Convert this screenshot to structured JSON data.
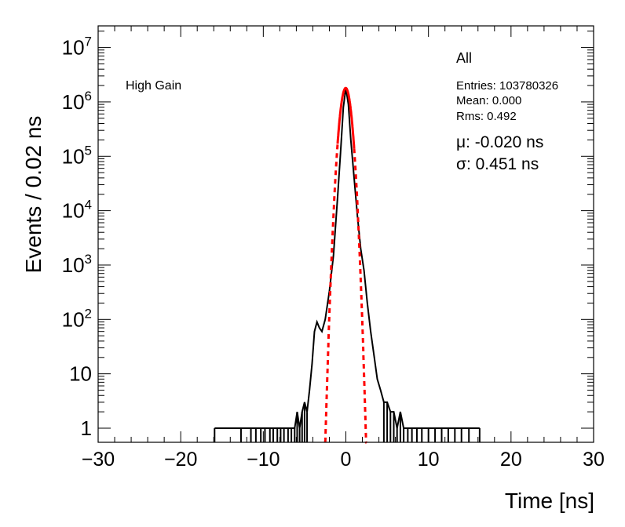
{
  "chart_data": {
    "type": "histogram",
    "title": "",
    "xlabel": "Time [ns]",
    "ylabel": "Events / 0.02 ns",
    "xlim": [
      -30,
      30
    ],
    "ylim": [
      0.55,
      25000000
    ],
    "yscale": "log",
    "bin_width_ns": 0.02,
    "x_ticks": [
      -30,
      -20,
      -10,
      0,
      10,
      20,
      30
    ],
    "x_tick_labels": [
      "−30",
      "−20",
      "−10",
      "0",
      "10",
      "20",
      "30"
    ],
    "y_ticks": [
      1,
      10,
      100,
      1000,
      10000,
      100000,
      1000000,
      10000000
    ],
    "y_tick_labels": [
      {
        "base": "1",
        "exp": ""
      },
      {
        "base": "10",
        "exp": ""
      },
      {
        "base": "10",
        "exp": "2"
      },
      {
        "base": "10",
        "exp": "3"
      },
      {
        "base": "10",
        "exp": "4"
      },
      {
        "base": "10",
        "exp": "5"
      },
      {
        "base": "10",
        "exp": "6"
      },
      {
        "base": "10",
        "exp": "7"
      }
    ],
    "grid": false,
    "annotation_left": "High Gain",
    "stats": {
      "name": "All",
      "entries": "Entries: 103780326",
      "mean": "Mean: 0.000",
      "rms": "Rms: 0.492"
    },
    "fit": {
      "mu_text": "μ: -0.020 ns",
      "sigma_text": "σ: 0.451 ns",
      "mu": -0.02,
      "sigma": 0.451,
      "peak": 1800000
    },
    "series": [
      {
        "style": "histogram",
        "color": "#000000",
        "points": [
          [
            -15.9,
            1
          ],
          [
            -12.7,
            1
          ],
          [
            -11.5,
            1
          ],
          [
            -10.9,
            1
          ],
          [
            -10.3,
            1
          ],
          [
            -9.8,
            1
          ],
          [
            -9.2,
            1
          ],
          [
            -8.8,
            1
          ],
          [
            -8.3,
            1
          ],
          [
            -7.9,
            1
          ],
          [
            -7.5,
            1
          ],
          [
            -7.0,
            1
          ],
          [
            -6.6,
            1
          ],
          [
            -6.2,
            1
          ],
          [
            -5.9,
            2
          ],
          [
            -5.6,
            1
          ],
          [
            -5.3,
            2
          ],
          [
            -5.0,
            3
          ],
          [
            -4.7,
            2
          ],
          [
            -4.4,
            5
          ],
          [
            -4.1,
            15
          ],
          [
            -3.8,
            60
          ],
          [
            -3.5,
            90
          ],
          [
            -3.2,
            70
          ],
          [
            -2.9,
            60
          ],
          [
            -2.5,
            100
          ],
          [
            -2.0,
            330
          ],
          [
            -1.5,
            1500
          ],
          [
            -1.0,
            18000
          ],
          [
            -0.6,
            150000
          ],
          [
            -0.3,
            800000
          ],
          [
            0.0,
            1800000
          ],
          [
            0.3,
            900000
          ],
          [
            0.6,
            200000
          ],
          [
            1.0,
            40000
          ],
          [
            1.4,
            8000
          ],
          [
            1.8,
            2000
          ],
          [
            2.2,
            800
          ],
          [
            2.6,
            200
          ],
          [
            3.0,
            60
          ],
          [
            3.4,
            22
          ],
          [
            3.8,
            8
          ],
          [
            4.2,
            5
          ],
          [
            4.6,
            3
          ],
          [
            5.0,
            3
          ],
          [
            5.4,
            2
          ],
          [
            5.8,
            2
          ],
          [
            6.2,
            1
          ],
          [
            6.6,
            2
          ],
          [
            7.0,
            1
          ],
          [
            7.5,
            1
          ],
          [
            8.0,
            1
          ],
          [
            8.6,
            1
          ],
          [
            9.2,
            1
          ],
          [
            10.0,
            1
          ],
          [
            10.8,
            1
          ],
          [
            11.6,
            1
          ],
          [
            12.4,
            1
          ],
          [
            13.2,
            1
          ],
          [
            14.0,
            1
          ],
          [
            14.9,
            1
          ],
          [
            16.2,
            1
          ]
        ]
      },
      {
        "style": "gaussian-fit",
        "color": "#ff0000",
        "x_range": [
          -2.5,
          2.5
        ],
        "solid_range": [
          -1.0,
          1.0
        ]
      }
    ]
  }
}
